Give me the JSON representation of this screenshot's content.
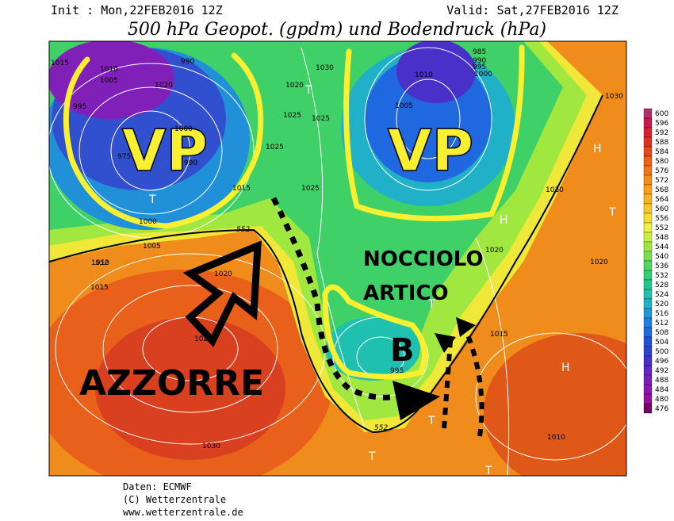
{
  "header": {
    "init": "Init : Mon,22FEB2016 12Z",
    "valid": "Valid: Sat,27FEB2016 12Z",
    "title": "500 hPa Geopot. (gpdm) und Bodendruck (hPa)"
  },
  "annotations": {
    "vortex_left": "VP",
    "vortex_right": "VP",
    "core_line1": "NOCCIOLO",
    "core_line2": "ARTICO",
    "high": "AZZORRE",
    "low": "B"
  },
  "pressure_centers": [
    "H",
    "H",
    "H",
    "T",
    "T",
    "T",
    "T",
    "T",
    "T",
    "T"
  ],
  "isobar_labels": [
    "1015",
    "1010",
    "1005",
    "1020",
    "990",
    "995",
    "1000",
    "975",
    "990",
    "1000",
    "1005",
    "1010",
    "1015",
    "1020",
    "1025",
    "1025",
    "1025",
    "1025",
    "1030",
    "985",
    "990",
    "995",
    "1000",
    "1005",
    "1010",
    "1020",
    "1020",
    "1030",
    "1015",
    "1020",
    "1025",
    "1030",
    "995",
    "1015",
    "1030",
    "1010"
  ],
  "contour_labels": [
    "552",
    "552",
    "552"
  ],
  "legend": [
    {
      "label": 600,
      "color": "#b0306a"
    },
    {
      "label": 596,
      "color": "#c8184a"
    },
    {
      "label": 592,
      "color": "#d82030"
    },
    {
      "label": 588,
      "color": "#e03020"
    },
    {
      "label": 584,
      "color": "#e84818"
    },
    {
      "label": 580,
      "color": "#ec6018"
    },
    {
      "label": 576,
      "color": "#f07818"
    },
    {
      "label": 572,
      "color": "#f48c18"
    },
    {
      "label": 568,
      "color": "#f8a018"
    },
    {
      "label": 564,
      "color": "#f8b420"
    },
    {
      "label": 560,
      "color": "#f8c828"
    },
    {
      "label": 556,
      "color": "#f8dc30"
    },
    {
      "label": 552,
      "color": "#f0f040"
    },
    {
      "label": 548,
      "color": "#c8f040"
    },
    {
      "label": 544,
      "color": "#a0e840"
    },
    {
      "label": 540,
      "color": "#78e050"
    },
    {
      "label": 536,
      "color": "#50d860"
    },
    {
      "label": 532,
      "color": "#30d078"
    },
    {
      "label": 528,
      "color": "#20c890"
    },
    {
      "label": 524,
      "color": "#20c0b0"
    },
    {
      "label": 520,
      "color": "#20b0c8"
    },
    {
      "label": 516,
      "color": "#2098d8"
    },
    {
      "label": 512,
      "color": "#2080e0"
    },
    {
      "label": 508,
      "color": "#2068e0"
    },
    {
      "label": 504,
      "color": "#2050d8"
    },
    {
      "label": 500,
      "color": "#3040d0"
    },
    {
      "label": 496,
      "color": "#4830c8"
    },
    {
      "label": 492,
      "color": "#6028c0"
    },
    {
      "label": 488,
      "color": "#7820b8"
    },
    {
      "label": 484,
      "color": "#8818b0"
    },
    {
      "label": 480,
      "color": "#9810a0"
    },
    {
      "label": 476,
      "color": "#700868"
    }
  ],
  "footer": {
    "source": "Daten: ECMWF",
    "copyright": "(C) Wetterzentrale",
    "url": "www.wetterzentrale.de"
  }
}
